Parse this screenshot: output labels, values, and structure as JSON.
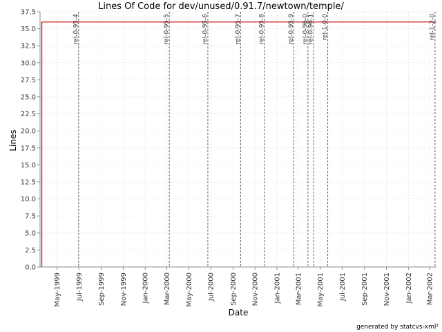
{
  "chart_data": {
    "type": "line",
    "title": "Lines Of Code for dev/unused/0.91.7/newtown/temple/",
    "xlabel": "Date",
    "ylabel": "Lines",
    "xlim": [
      "1999-03-15",
      "2002-03-20"
    ],
    "ylim": [
      0,
      37.5
    ],
    "y_ticks": [
      0.0,
      2.5,
      5.0,
      7.5,
      10.0,
      12.5,
      15.0,
      17.5,
      20.0,
      22.5,
      25.0,
      27.5,
      30.0,
      32.5,
      35.0,
      37.5
    ],
    "x_ticks": [
      {
        "date": "1999-05-01",
        "label": "May-1999"
      },
      {
        "date": "1999-07-01",
        "label": "Jul-1999"
      },
      {
        "date": "1999-09-01",
        "label": "Sep-1999"
      },
      {
        "date": "1999-11-01",
        "label": "Nov-1999"
      },
      {
        "date": "2000-01-01",
        "label": "Jan-2000"
      },
      {
        "date": "2000-03-01",
        "label": "Mar-2000"
      },
      {
        "date": "2000-05-01",
        "label": "May-2000"
      },
      {
        "date": "2000-07-01",
        "label": "Jul-2000"
      },
      {
        "date": "2000-09-01",
        "label": "Sep-2000"
      },
      {
        "date": "2000-11-01",
        "label": "Nov-2000"
      },
      {
        "date": "2001-01-01",
        "label": "Jan-2001"
      },
      {
        "date": "2001-03-01",
        "label": "Mar-2001"
      },
      {
        "date": "2001-05-01",
        "label": "May-2001"
      },
      {
        "date": "2001-07-01",
        "label": "Jul-2001"
      },
      {
        "date": "2001-09-01",
        "label": "Sep-2001"
      },
      {
        "date": "2001-11-01",
        "label": "Nov-2001"
      },
      {
        "date": "2002-01-01",
        "label": "Jan-2002"
      },
      {
        "date": "2002-03-01",
        "label": "Mar-2002"
      }
    ],
    "series": [
      {
        "color": "#cc0000",
        "points": [
          {
            "x": "1999-03-20",
            "y": 0
          },
          {
            "x": "1999-03-20",
            "y": 36
          },
          {
            "x": "2002-03-20",
            "y": 36
          }
        ]
      }
    ],
    "markers": [
      {
        "date": "1999-06-30",
        "label": "rel-0-95-4"
      },
      {
        "date": "2000-03-08",
        "label": "rel-0-95-5"
      },
      {
        "date": "2000-06-23",
        "label": "rel-0-95-6"
      },
      {
        "date": "2000-09-22",
        "label": "rel-0-95-7"
      },
      {
        "date": "2000-11-27",
        "label": "rel-0-95-8"
      },
      {
        "date": "2001-02-17",
        "label": "rel-0-95-9"
      },
      {
        "date": "2001-03-28",
        "label": "rel-0-96-0"
      },
      {
        "date": "2001-04-13",
        "label": "rel-0-96-1"
      },
      {
        "date": "2001-05-22",
        "label": "rel-1-0-0"
      },
      {
        "date": "2002-03-16",
        "label": "rel-1-2-0"
      }
    ],
    "grid": true,
    "footer": "generated by statcvs-xml²"
  }
}
